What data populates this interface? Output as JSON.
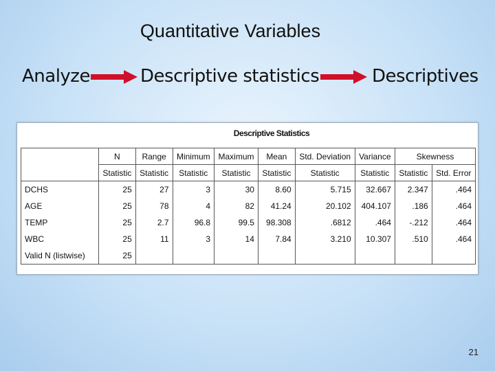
{
  "slide": {
    "title": "Quantitative Variables",
    "page_number": "21"
  },
  "menu_path": {
    "step1": "Analyze",
    "step2": "Descriptive statistics",
    "step3": "Descriptives",
    "arrow_color": "#d0102a"
  },
  "table": {
    "title": "Descriptive Statistics",
    "group_headers": [
      "N",
      "Range",
      "Minimum",
      "Maximum",
      "Mean",
      "Std. Deviation",
      "Variance",
      "Skewness"
    ],
    "sub_headers": [
      "Statistic",
      "Statistic",
      "Statistic",
      "Statistic",
      "Statistic",
      "Statistic",
      "Statistic",
      "Statistic",
      "Std. Error"
    ],
    "rows": [
      {
        "label": "DCHS",
        "values": [
          "25",
          "27",
          "3",
          "30",
          "8.60",
          "5.715",
          "32.667",
          "2.347",
          ".464"
        ]
      },
      {
        "label": "AGE",
        "values": [
          "25",
          "78",
          "4",
          "82",
          "41.24",
          "20.102",
          "404.107",
          ".186",
          ".464"
        ]
      },
      {
        "label": "TEMP",
        "values": [
          "25",
          "2.7",
          "96.8",
          "99.5",
          "98.308",
          ".6812",
          ".464",
          "-.212",
          ".464"
        ]
      },
      {
        "label": "WBC",
        "values": [
          "25",
          "11",
          "3",
          "14",
          "7.84",
          "3.210",
          "10.307",
          ".510",
          ".464"
        ]
      },
      {
        "label": "Valid N (listwise)",
        "values": [
          "25",
          "",
          "",
          "",
          "",
          "",
          "",
          "",
          ""
        ]
      }
    ]
  }
}
